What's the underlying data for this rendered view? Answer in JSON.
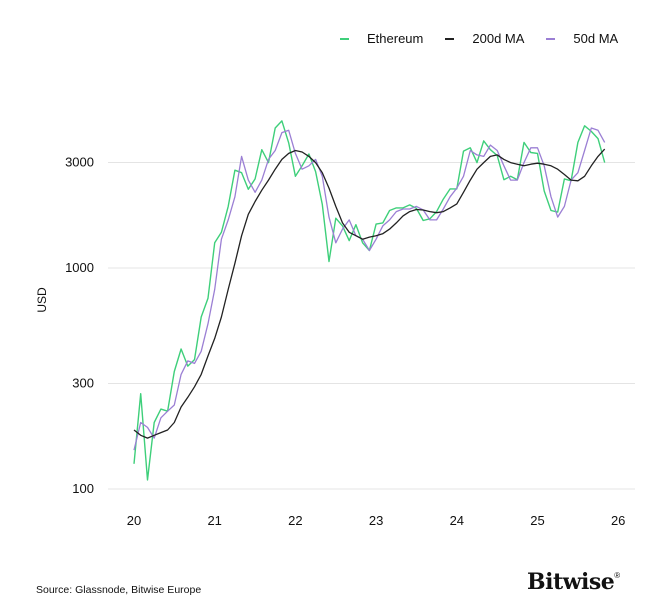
{
  "chart_data": {
    "type": "line",
    "title": "",
    "xlabel": "",
    "ylabel": "USD",
    "yscale": "log",
    "ylim": [
      90,
      8000
    ],
    "xlim": [
      2019.7,
      2026.2
    ],
    "yticks": [
      100,
      300,
      1000,
      3000
    ],
    "ytick_labels": [
      "100",
      "300",
      "1000",
      "3000"
    ],
    "xticks": [
      2020,
      2021,
      2022,
      2023,
      2024,
      2025,
      2026
    ],
    "xtick_labels": [
      "20",
      "21",
      "22",
      "23",
      "24",
      "25",
      "26"
    ],
    "grid": "horizontal",
    "legend_placement": "top-right",
    "x": [
      "2020-01",
      "2020-02",
      "2020-03",
      "2020-04",
      "2020-05",
      "2020-06",
      "2020-07",
      "2020-08",
      "2020-09",
      "2020-10",
      "2020-11",
      "2020-12",
      "2021-01",
      "2021-02",
      "2021-03",
      "2021-04",
      "2021-05",
      "2021-06",
      "2021-07",
      "2021-08",
      "2021-09",
      "2021-10",
      "2021-11",
      "2021-12",
      "2022-01",
      "2022-02",
      "2022-03",
      "2022-04",
      "2022-05",
      "2022-06",
      "2022-07",
      "2022-08",
      "2022-09",
      "2022-10",
      "2022-11",
      "2022-12",
      "2023-01",
      "2023-02",
      "2023-03",
      "2023-04",
      "2023-05",
      "2023-06",
      "2023-07",
      "2023-08",
      "2023-09",
      "2023-10",
      "2023-11",
      "2023-12",
      "2024-01",
      "2024-02",
      "2024-03",
      "2024-04",
      "2024-05",
      "2024-06",
      "2024-07",
      "2024-08",
      "2024-09",
      "2024-10",
      "2024-11",
      "2024-12",
      "2025-01",
      "2025-02",
      "2025-03",
      "2025-04",
      "2025-05",
      "2025-06",
      "2025-07",
      "2025-08",
      "2025-09",
      "2025-10",
      "2025-11"
    ],
    "series": [
      {
        "name": "Ethereum",
        "color": "#3ecf7a",
        "values": [
          130,
          270,
          110,
          200,
          230,
          225,
          340,
          430,
          360,
          385,
          600,
          730,
          1300,
          1450,
          1900,
          2770,
          2700,
          2270,
          2530,
          3430,
          3000,
          4300,
          4630,
          3680,
          2600,
          2900,
          3280,
          2730,
          1940,
          1070,
          1680,
          1550,
          1330,
          1570,
          1300,
          1200,
          1580,
          1600,
          1820,
          1870,
          1870,
          1930,
          1860,
          1640,
          1670,
          1800,
          2050,
          2280,
          2280,
          3380,
          3500,
          3000,
          3760,
          3430,
          3230,
          2510,
          2600,
          2510,
          3700,
          3330,
          3300,
          2230,
          1820,
          1790,
          2530,
          2480,
          3700,
          4400,
          4150,
          3850,
          3000
        ]
      },
      {
        "name": "200d MA",
        "color": "#222222",
        "values": [
          185,
          175,
          170,
          175,
          180,
          185,
          200,
          235,
          260,
          290,
          330,
          400,
          480,
          600,
          800,
          1050,
          1400,
          1750,
          2000,
          2250,
          2500,
          2800,
          3100,
          3300,
          3400,
          3350,
          3200,
          3000,
          2700,
          2300,
          1900,
          1600,
          1450,
          1400,
          1350,
          1380,
          1400,
          1430,
          1500,
          1600,
          1720,
          1800,
          1840,
          1830,
          1800,
          1780,
          1800,
          1870,
          1950,
          2200,
          2500,
          2800,
          3000,
          3200,
          3250,
          3100,
          3000,
          2950,
          2900,
          2950,
          2980,
          2950,
          2900,
          2800,
          2650,
          2500,
          2480,
          2600,
          2900,
          3200,
          3450
        ]
      },
      {
        "name": "50d MA",
        "color": "#9b7fd4",
        "values": [
          150,
          200,
          190,
          170,
          210,
          225,
          240,
          330,
          380,
          370,
          420,
          560,
          800,
          1350,
          1650,
          2100,
          3200,
          2500,
          2200,
          2500,
          3100,
          3400,
          4100,
          4200,
          3300,
          2800,
          2900,
          3100,
          2600,
          1700,
          1300,
          1500,
          1650,
          1400,
          1350,
          1200,
          1350,
          1550,
          1650,
          1800,
          1850,
          1850,
          1900,
          1830,
          1650,
          1650,
          1850,
          2100,
          2300,
          2600,
          3400,
          3250,
          3200,
          3600,
          3400,
          2900,
          2500,
          2500,
          3000,
          3500,
          3500,
          2900,
          2100,
          1700,
          1900,
          2500,
          2700,
          3400,
          4300,
          4200,
          3700
        ]
      }
    ]
  },
  "legend": [
    {
      "label": "Ethereum",
      "color": "#3ecf7a"
    },
    {
      "label": "200d MA",
      "color": "#222222"
    },
    {
      "label": "50d MA",
      "color": "#9b7fd4"
    }
  ],
  "footer": {
    "source": "Source: Glassnode, Bitwise Europe",
    "logo": "Bitwise"
  }
}
